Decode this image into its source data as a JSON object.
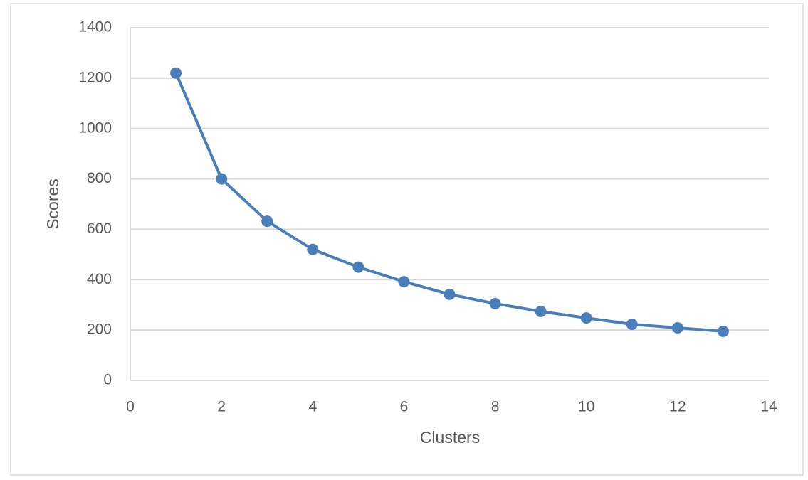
{
  "chart_data": {
    "type": "line",
    "x_label": "Clusters",
    "y_label": "Scores",
    "x": [
      1,
      2,
      3,
      4,
      5,
      6,
      7,
      8,
      9,
      10,
      11,
      12,
      13
    ],
    "values": [
      1220,
      800,
      632,
      520,
      450,
      392,
      342,
      305,
      274,
      248,
      223,
      209,
      195
    ],
    "color": "#4a7ebb",
    "xlim": [
      0,
      14
    ],
    "xticks": [
      0,
      2,
      4,
      6,
      8,
      10,
      12,
      14
    ],
    "ylim": [
      0,
      1400
    ],
    "yticks": [
      0,
      200,
      400,
      600,
      800,
      1000,
      1200,
      1400
    ],
    "grid": true
  }
}
